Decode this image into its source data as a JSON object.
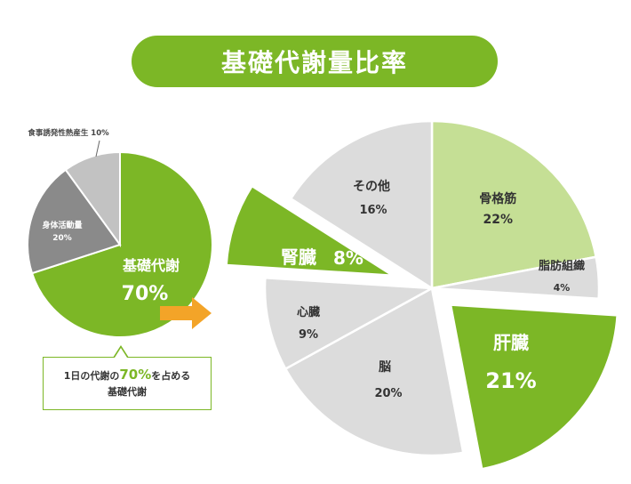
{
  "title": "基礎代謝量比率",
  "colors": {
    "green": "#7cb726",
    "light_green": "#c5df95",
    "light_gray": "#dcdcdc",
    "mid_gray": "#c2c2c2",
    "dark_gray": "#8a8a8a",
    "arrow": "#f3a428"
  },
  "callout": {
    "prefix": "1日の代謝の",
    "pct": "70%",
    "suffix": "を占める",
    "line2": "基礎代謝"
  },
  "chart_data": [
    {
      "type": "pie",
      "title": "",
      "slices": [
        {
          "label": "基礎代謝",
          "value": 70,
          "display": "70%"
        },
        {
          "label": "身体活動量",
          "value": 20,
          "display": "20%"
        },
        {
          "label": "食事誘発性熱産生",
          "value": 10,
          "display": "10%"
        }
      ]
    },
    {
      "type": "pie",
      "title": "",
      "slices": [
        {
          "label": "骨格筋",
          "value": 22,
          "display": "22%"
        },
        {
          "label": "脂肪組織",
          "value": 4,
          "display": "4%"
        },
        {
          "label": "肝臓",
          "value": 21,
          "display": "21%"
        },
        {
          "label": "脳",
          "value": 20,
          "display": "20%"
        },
        {
          "label": "心臓",
          "value": 9,
          "display": "9%"
        },
        {
          "label": "腎臓",
          "value": 8,
          "display": "8%"
        },
        {
          "label": "その他",
          "value": 16,
          "display": "16%"
        }
      ]
    }
  ]
}
